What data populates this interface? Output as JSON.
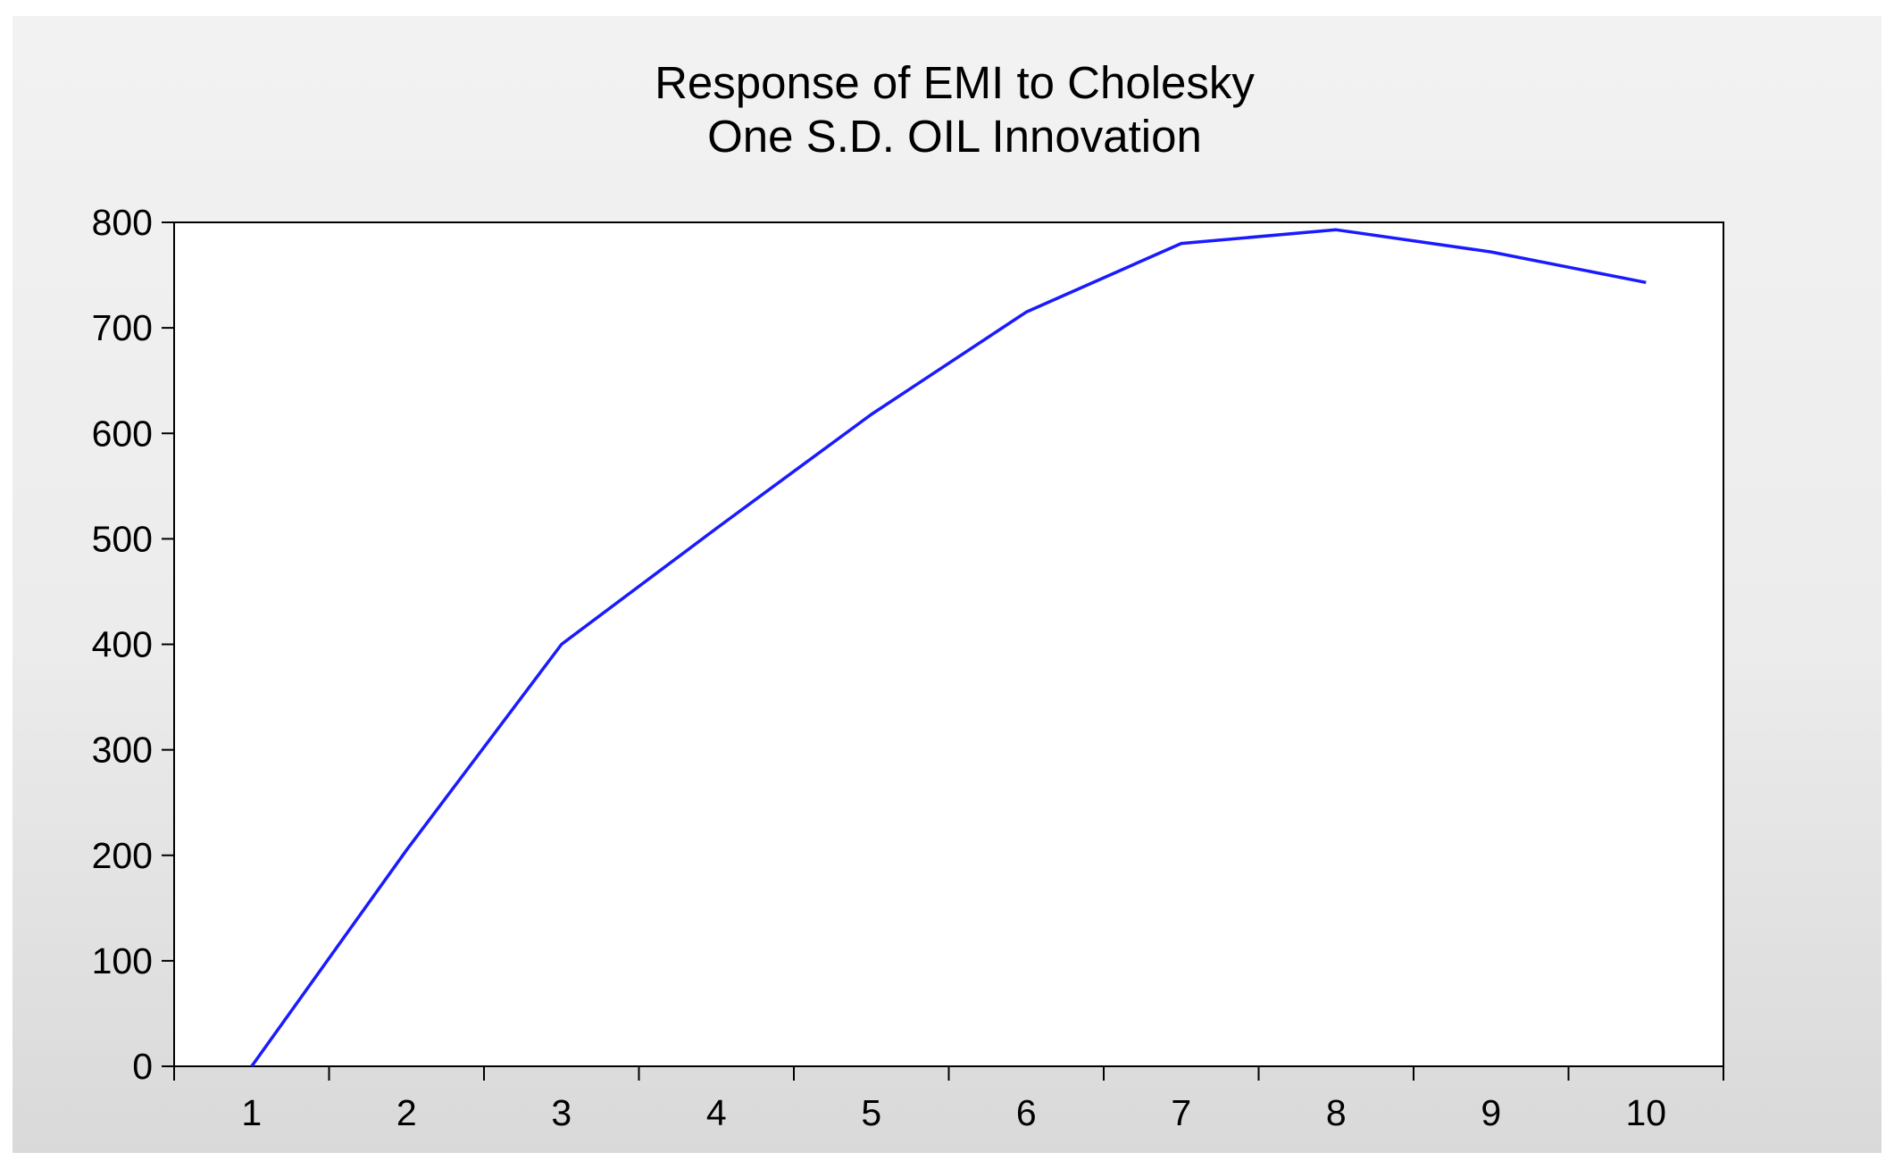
{
  "chart_data": {
    "type": "line",
    "title": [
      "Response of EMI to Cholesky",
      "One S.D. OIL Innovation"
    ],
    "xlabel": "",
    "ylabel": "",
    "x": [
      1,
      2,
      3,
      4,
      5,
      6,
      7,
      8,
      9,
      10
    ],
    "x_ticks": [
      "1",
      "2",
      "3",
      "4",
      "5",
      "6",
      "7",
      "8",
      "9",
      "10"
    ],
    "y_ticks": [
      "0",
      "100",
      "200",
      "300",
      "400",
      "500",
      "600",
      "700",
      "800"
    ],
    "ylim": [
      0,
      800
    ],
    "xlim": [
      0.5,
      10.5
    ],
    "grid": false,
    "legend": "none",
    "series": [
      {
        "values": [
          0,
          205,
          400,
          510,
          618,
          715,
          780,
          793,
          772,
          743
        ],
        "color": "#1a1aff"
      }
    ]
  }
}
